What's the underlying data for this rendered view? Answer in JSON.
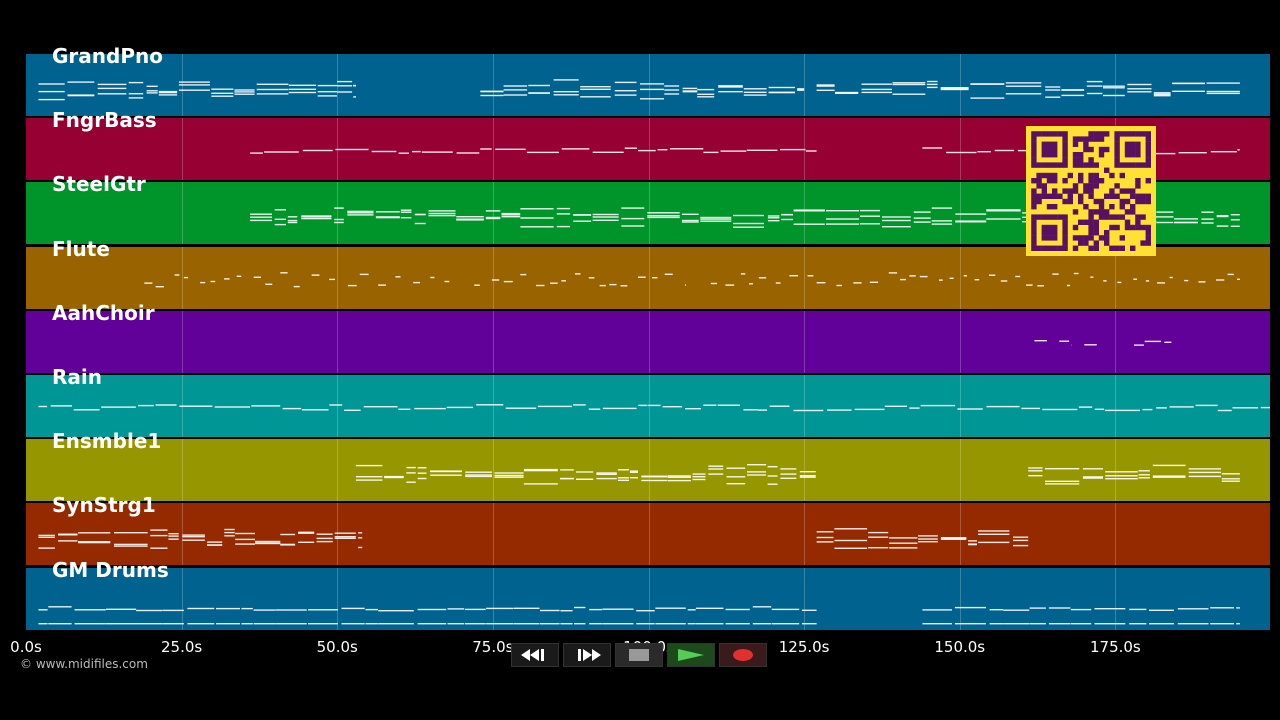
{
  "timeline": {
    "duration_s": 200,
    "ticks": [
      {
        "label": "0.0s",
        "t": 0
      },
      {
        "label": "25.0s",
        "t": 25
      },
      {
        "label": "50.0s",
        "t": 50
      },
      {
        "label": "75.0s",
        "t": 75
      },
      {
        "label": "100.0s",
        "t": 100
      },
      {
        "label": "125.0s",
        "t": 125
      },
      {
        "label": "150.0s",
        "t": 150
      },
      {
        "label": "175.0s",
        "t": 175
      }
    ]
  },
  "tracks": [
    {
      "name": "GrandPno",
      "color": "#00628f",
      "segments": [
        [
          2,
          53
        ],
        [
          73,
          125
        ],
        [
          127,
          195
        ]
      ],
      "style": "dense"
    },
    {
      "name": "FngrBass",
      "color": "#970033",
      "segments": [
        [
          36,
          127
        ],
        [
          144,
          195
        ]
      ],
      "style": "line"
    },
    {
      "name": "SteelGtr",
      "color": "#00952a",
      "segments": [
        [
          36,
          195
        ]
      ],
      "style": "dense"
    },
    {
      "name": "Flute",
      "color": "#996300",
      "segments": [
        [
          19,
          68
        ],
        [
          72,
          106
        ],
        [
          110,
          195
        ]
      ],
      "style": "sparse"
    },
    {
      "name": "AahChoir",
      "color": "#62009a",
      "segments": [
        [
          162,
          164
        ],
        [
          166,
          168
        ],
        [
          170,
          172
        ],
        [
          178,
          184
        ]
      ],
      "style": "line"
    },
    {
      "name": "Rain",
      "color": "#009696",
      "segments": [
        [
          2,
          200
        ]
      ],
      "style": "line"
    },
    {
      "name": "Ensmble1",
      "color": "#969600",
      "segments": [
        [
          53,
          127
        ],
        [
          161,
          195
        ]
      ],
      "style": "dense"
    },
    {
      "name": "SynStrg1",
      "color": "#952a00",
      "segments": [
        [
          2,
          54
        ],
        [
          127,
          161
        ]
      ],
      "style": "dense"
    },
    {
      "name": "GM Drums",
      "color": "#00628f",
      "segments": [
        [
          2,
          127
        ],
        [
          144,
          195
        ]
      ],
      "style": "drums"
    }
  ],
  "copyright": "© www.midifiles.com",
  "transport": {
    "rewind": "rewind-icon",
    "fastforward": "fast-forward-icon",
    "stop": "stop-icon",
    "play": "play-icon",
    "record": "record-icon",
    "play_color": "#55cc55",
    "record_color": "#e03030"
  },
  "qr": {
    "color": "#ffe033",
    "module": "#5a1060"
  }
}
